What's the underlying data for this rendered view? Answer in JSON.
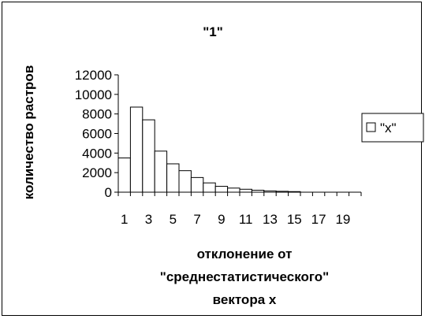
{
  "chart_data": {
    "type": "bar",
    "title": "\"1\"",
    "ylabel": "количество растров",
    "xlabel_lines": [
      "отклонение от",
      "\"среднестатистического\"",
      "вектора x"
    ],
    "categories": [
      "1",
      "2",
      "3",
      "4",
      "5",
      "6",
      "7",
      "8",
      "9",
      "10",
      "11",
      "12",
      "13",
      "14",
      "15",
      "16",
      "17",
      "18",
      "19",
      "20"
    ],
    "x_tick_labels": [
      "1",
      "3",
      "5",
      "7",
      "9",
      "11",
      "13",
      "15",
      "17",
      "19"
    ],
    "y_ticks": [
      0,
      2000,
      4000,
      6000,
      8000,
      10000,
      12000
    ],
    "ylim": [
      0,
      12000
    ],
    "series": [
      {
        "name": "\"x\"",
        "values": [
          3500,
          8700,
          7400,
          4200,
          2900,
          2200,
          1500,
          950,
          600,
          420,
          300,
          200,
          130,
          90,
          60,
          0,
          0,
          0,
          0,
          0
        ]
      }
    ],
    "legend_position": "right",
    "grid": false,
    "colors": {
      "bar_fill": "#ffffff",
      "bar_stroke": "#000000",
      "axis": "#000000"
    }
  }
}
